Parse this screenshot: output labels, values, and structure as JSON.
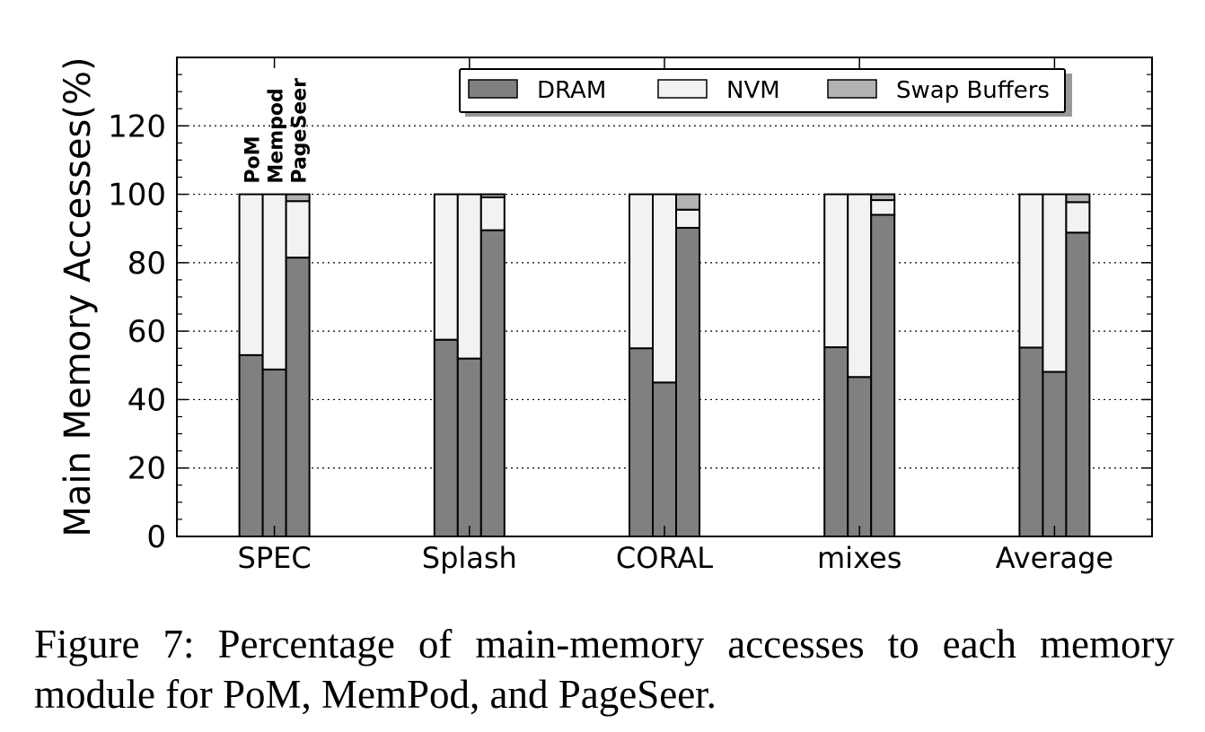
{
  "chart_data": {
    "type": "stacked-bar",
    "ylabel": "Main Memory Accesses(%)",
    "xlabel": "",
    "ylim": [
      0,
      140
    ],
    "yticks": [
      0,
      20,
      40,
      60,
      80,
      100,
      120
    ],
    "grid": "horizontal-dotted",
    "legend_position": "top-right",
    "categories": [
      "SPEC",
      "Splash",
      "CORAL",
      "mixes",
      "Average"
    ],
    "schemes": [
      "PoM",
      "Mempod",
      "PageSeer"
    ],
    "series": [
      {
        "name": "DRAM",
        "color": "#808080",
        "values": [
          [
            53,
            48.8,
            81.5
          ],
          [
            57.5,
            52,
            89.5
          ],
          [
            55,
            45,
            90.2
          ],
          [
            55.3,
            46.6,
            94
          ],
          [
            55.2,
            48.1,
            88.8
          ]
        ]
      },
      {
        "name": "NVM",
        "color": "#f2f2f2",
        "values": [
          [
            47,
            51.2,
            16.5
          ],
          [
            42.5,
            48,
            9.6
          ],
          [
            45,
            55,
            5.3
          ],
          [
            44.7,
            53.4,
            4.3
          ],
          [
            44.8,
            51.9,
            8.9
          ]
        ]
      },
      {
        "name": "Swap Buffers",
        "color": "#b2b2b2",
        "values": [
          [
            0,
            0,
            2
          ],
          [
            0,
            0,
            0.9
          ],
          [
            0,
            0,
            4.5
          ],
          [
            0,
            0,
            1.7
          ],
          [
            0,
            0,
            2.3
          ]
        ]
      }
    ]
  },
  "caption": "Figure 7: Percentage of main-memory accesses to each memory module for PoM, MemPod, and PageSeer."
}
